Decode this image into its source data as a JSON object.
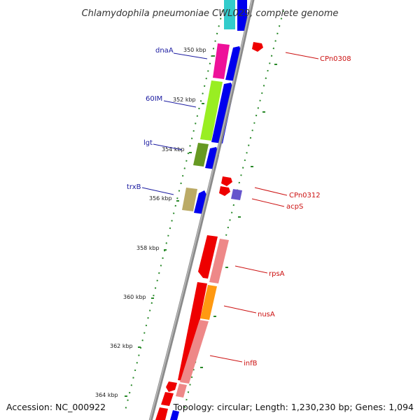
{
  "title": "Chlamydophila pneumoniae CWL029, complete genome",
  "footer": {
    "accession": "Accession: NC_000922",
    "topology": "Topology: circular; Length: 1,230,230 bp; Genes: 1,094"
  },
  "colors": {
    "backbone": "#8a8a8a",
    "dots": "#2a8a2a",
    "forward_gene": "#0000ee",
    "label_blue": "#1a1aa0",
    "label_red": "#cc1111"
  },
  "ticks": [
    "350 kbp",
    "352 kbp",
    "354 kbp",
    "356 kbp",
    "358 kbp",
    "360 kbp",
    "362 kbp",
    "364 kbp"
  ],
  "labels_left": [
    "dnaA",
    "60IM",
    "lgt",
    "trxB"
  ],
  "labels_right": [
    "CPn0308",
    "CPn0312",
    "acpS",
    "rpsA",
    "nusA",
    "infB"
  ]
}
